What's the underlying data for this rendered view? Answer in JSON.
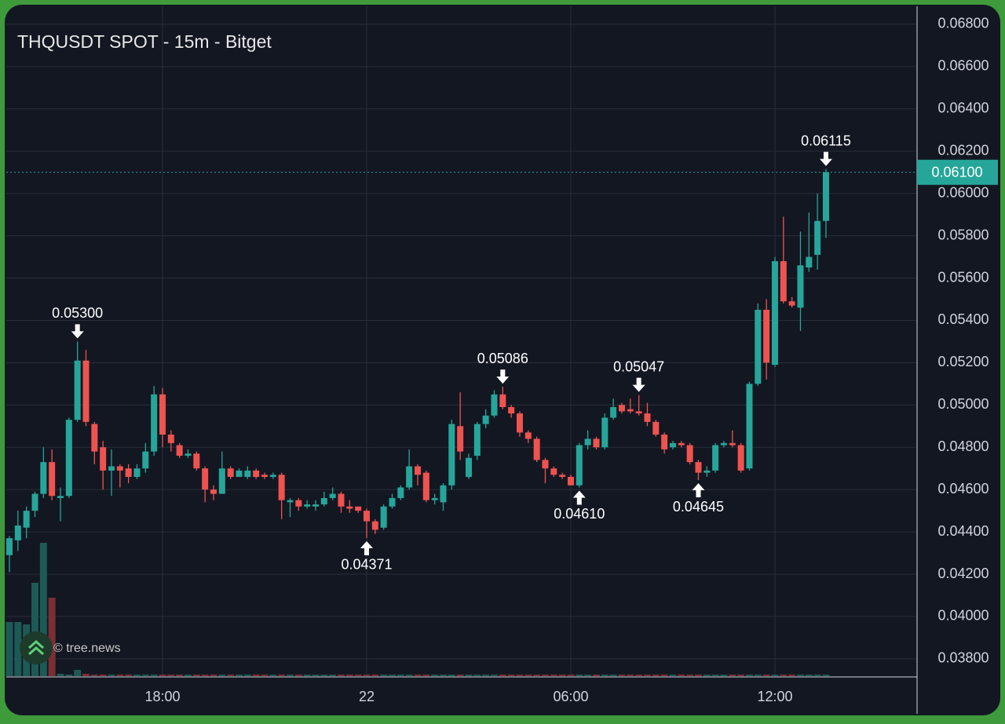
{
  "chart_data": {
    "type": "candlestick",
    "title": "THQUSDT SPOT - 15m - Bitget",
    "watermark": "© tree.news",
    "categories": [
      null,
      null,
      null,
      null,
      null,
      null,
      null,
      null,
      null,
      null,
      null,
      null,
      null,
      null,
      null,
      null,
      null,
      null,
      "18:00",
      null,
      null,
      null,
      null,
      null,
      null,
      null,
      null,
      null,
      null,
      null,
      null,
      null,
      null,
      null,
      null,
      null,
      null,
      null,
      null,
      null,
      null,
      null,
      "22",
      null,
      null,
      null,
      null,
      null,
      null,
      null,
      null,
      null,
      null,
      null,
      null,
      null,
      null,
      null,
      null,
      null,
      null,
      null,
      null,
      null,
      null,
      null,
      "06:00",
      null,
      null,
      null,
      null,
      null,
      null,
      null,
      null,
      null,
      null,
      null,
      null,
      null,
      null,
      null,
      null,
      null,
      null,
      null,
      null,
      null,
      null,
      null,
      "12:00",
      null,
      null,
      null,
      null,
      null,
      null
    ],
    "open": [
      0.0429,
      0.0436,
      0.0442,
      0.045,
      0.0458,
      0.0473,
      0.0456,
      0.0457,
      0.0493,
      0.0521,
      0.0491,
      0.048,
      0.0469,
      0.0471,
      0.047,
      0.0466,
      0.047,
      0.0478,
      0.0505,
      0.0486,
      0.0481,
      0.0476,
      0.0477,
      0.047,
      0.046,
      0.0458,
      0.047,
      0.0466,
      0.0466,
      0.0469,
      0.0467,
      0.0466,
      0.0467,
      0.0454,
      0.0455,
      0.0452,
      0.0452,
      0.0453,
      0.0456,
      0.0458,
      0.0452,
      0.0452,
      0.045,
      0.0445,
      0.0442,
      0.0452,
      0.0456,
      0.0461,
      0.0471,
      0.0468,
      0.0455,
      0.0454,
      0.0462,
      0.049,
      0.0466,
      0.0476,
      0.0491,
      0.0495,
      0.0505,
      0.0499,
      0.0496,
      0.0487,
      0.0484,
      0.0474,
      0.047,
      0.0467,
      0.0466,
      0.0462,
      0.0481,
      0.0484,
      0.048,
      0.0494,
      0.05,
      0.0498,
      0.0497,
      0.0496,
      0.0492,
      0.0486,
      0.048,
      0.0482,
      0.0481,
      0.0473,
      0.0468,
      0.0469,
      0.0481,
      0.0482,
      0.0481,
      0.047,
      0.051,
      0.0545,
      0.0519,
      0.0568,
      0.0549,
      0.0546,
      0.0565,
      0.0571,
      0.0587
    ],
    "high": [
      0.0438,
      0.045,
      0.0452,
      0.0459,
      0.048,
      0.0479,
      0.0461,
      0.0494,
      0.053,
      0.0526,
      0.0492,
      0.0483,
      0.0479,
      0.0472,
      0.0472,
      0.0472,
      0.0482,
      0.0509,
      0.0508,
      0.0488,
      0.0482,
      0.0479,
      0.0478,
      0.0471,
      0.0462,
      0.0478,
      0.0471,
      0.047,
      0.0471,
      0.047,
      0.0468,
      0.0468,
      0.0468,
      0.0456,
      0.0456,
      0.0455,
      0.0455,
      0.0459,
      0.0461,
      0.0459,
      0.0455,
      0.0452,
      0.0451,
      0.0446,
      0.0453,
      0.0458,
      0.0462,
      0.0479,
      0.0472,
      0.0469,
      0.0458,
      0.0463,
      0.0493,
      0.0506,
      0.0477,
      0.0492,
      0.0498,
      0.0507,
      0.05086,
      0.05,
      0.0497,
      0.0488,
      0.0485,
      0.0475,
      0.0471,
      0.0468,
      0.0467,
      0.0482,
      0.0488,
      0.0485,
      0.0496,
      0.0503,
      0.0501,
      0.0503,
      0.05047,
      0.0501,
      0.0493,
      0.0487,
      0.0483,
      0.0483,
      0.0482,
      0.0474,
      0.0471,
      0.0482,
      0.0483,
      0.0488,
      0.0482,
      0.0511,
      0.0548,
      0.055,
      0.057,
      0.0589,
      0.0551,
      0.0582,
      0.0591,
      0.06,
      0.06115
    ],
    "low": [
      0.0421,
      0.0431,
      0.0437,
      0.0447,
      0.0456,
      0.0455,
      0.0445,
      0.0456,
      0.0492,
      0.049,
      0.0472,
      0.046,
      0.0457,
      0.0461,
      0.0463,
      0.0465,
      0.0468,
      0.0476,
      0.048,
      0.0478,
      0.0475,
      0.0475,
      0.0469,
      0.0454,
      0.0455,
      0.0458,
      0.0465,
      0.0466,
      0.0465,
      0.0465,
      0.0465,
      0.0465,
      0.0446,
      0.0447,
      0.045,
      0.0451,
      0.045,
      0.0452,
      0.0455,
      0.0449,
      0.0449,
      0.0449,
      0.04371,
      0.0439,
      0.0441,
      0.0451,
      0.0455,
      0.046,
      0.0462,
      0.0454,
      0.0453,
      0.045,
      0.046,
      0.0474,
      0.0465,
      0.0474,
      0.0489,
      0.0494,
      0.0498,
      0.0494,
      0.0485,
      0.0482,
      0.0473,
      0.0463,
      0.0466,
      0.0465,
      0.0462,
      0.0461,
      0.0479,
      0.0479,
      0.0479,
      0.0493,
      0.0496,
      0.0496,
      0.0495,
      0.049,
      0.0485,
      0.0477,
      0.0479,
      0.048,
      0.0472,
      0.04645,
      0.0466,
      0.0468,
      0.048,
      0.048,
      0.0468,
      0.0469,
      0.0509,
      0.0512,
      0.0518,
      0.0548,
      0.0546,
      0.0535,
      0.0563,
      0.0564,
      0.0579
    ],
    "close": [
      0.0437,
      0.0443,
      0.045,
      0.0458,
      0.0473,
      0.0457,
      0.0457,
      0.0493,
      0.0521,
      0.0492,
      0.0478,
      0.0469,
      0.0471,
      0.0469,
      0.0466,
      0.047,
      0.0478,
      0.0505,
      0.0486,
      0.0482,
      0.0476,
      0.0477,
      0.047,
      0.046,
      0.0458,
      0.047,
      0.0466,
      0.0469,
      0.0469,
      0.0466,
      0.0466,
      0.0467,
      0.0455,
      0.0455,
      0.0452,
      0.0453,
      0.0453,
      0.0456,
      0.0458,
      0.0452,
      0.0451,
      0.045,
      0.0445,
      0.0441,
      0.0452,
      0.0456,
      0.0461,
      0.0471,
      0.0467,
      0.0455,
      0.0456,
      0.0462,
      0.0491,
      0.0478,
      0.0475,
      0.0491,
      0.0495,
      0.0505,
      0.0499,
      0.0496,
      0.0487,
      0.0484,
      0.0474,
      0.047,
      0.0467,
      0.0466,
      0.0462,
      0.0481,
      0.0484,
      0.048,
      0.0494,
      0.0499,
      0.0497,
      0.0497,
      0.0496,
      0.0492,
      0.0486,
      0.0479,
      0.0482,
      0.0481,
      0.0473,
      0.0468,
      0.0469,
      0.0481,
      0.0482,
      0.0481,
      0.0469,
      0.051,
      0.0545,
      0.052,
      0.0568,
      0.0549,
      0.0547,
      0.0566,
      0.057,
      0.0587,
      0.061
    ],
    "volume": [
      69,
      69,
      66,
      119,
      170,
      100,
      3,
      2,
      8,
      3,
      2,
      2,
      2,
      2,
      2,
      2,
      2,
      2,
      2,
      2,
      2,
      2,
      2,
      2,
      2,
      2,
      2,
      2,
      2,
      2,
      2,
      2,
      2,
      2,
      2,
      2,
      2,
      2,
      2,
      2,
      2,
      2,
      2,
      2,
      2,
      2,
      2,
      2,
      2,
      2,
      2,
      2,
      2,
      2,
      2,
      2,
      2,
      2,
      2,
      2,
      2,
      2,
      2,
      2,
      2,
      2,
      2,
      2,
      2,
      2,
      2,
      2,
      2,
      2,
      2,
      2,
      2,
      2,
      2,
      2,
      2,
      2,
      2,
      2,
      2,
      2,
      2,
      2,
      2,
      2,
      2,
      2,
      2,
      2,
      2,
      2,
      2
    ],
    "up_color": "#26a69a",
    "down_color": "#ef5350",
    "ylim": [
      0.03718,
      0.06885
    ],
    "yticks": [
      {
        "value": 0.038,
        "label": "0.03800"
      },
      {
        "value": 0.04,
        "label": "0.04000"
      },
      {
        "value": 0.042,
        "label": "0.04200"
      },
      {
        "value": 0.044,
        "label": "0.04400"
      },
      {
        "value": 0.046,
        "label": "0.04600"
      },
      {
        "value": 0.048,
        "label": "0.04800"
      },
      {
        "value": 0.05,
        "label": "0.05000"
      },
      {
        "value": 0.052,
        "label": "0.05200"
      },
      {
        "value": 0.054,
        "label": "0.05400"
      },
      {
        "value": 0.056,
        "label": "0.05600"
      },
      {
        "value": 0.058,
        "label": "0.05800"
      },
      {
        "value": 0.06,
        "label": "0.06000"
      },
      {
        "value": 0.062,
        "label": "0.06200"
      },
      {
        "value": 0.064,
        "label": "0.06400"
      },
      {
        "value": 0.066,
        "label": "0.06600"
      },
      {
        "value": 0.068,
        "label": "0.06800"
      }
    ],
    "last_price": {
      "value": 0.061,
      "label": "0.06100"
    },
    "grid": true,
    "annotations": [
      {
        "text": "0.05300",
        "value": 0.053,
        "index": 8,
        "side": "above"
      },
      {
        "text": "0.04371",
        "value": 0.04371,
        "index": 42,
        "side": "below"
      },
      {
        "text": "0.05086",
        "value": 0.05086,
        "index": 58,
        "side": "above"
      },
      {
        "text": "0.04610",
        "value": 0.0461,
        "index": 67,
        "side": "below"
      },
      {
        "text": "0.05047",
        "value": 0.05047,
        "index": 74,
        "side": "above"
      },
      {
        "text": "0.04645",
        "value": 0.04645,
        "index": 81,
        "side": "below"
      },
      {
        "text": "0.06115",
        "value": 0.06115,
        "index": 96,
        "side": "above"
      }
    ]
  }
}
